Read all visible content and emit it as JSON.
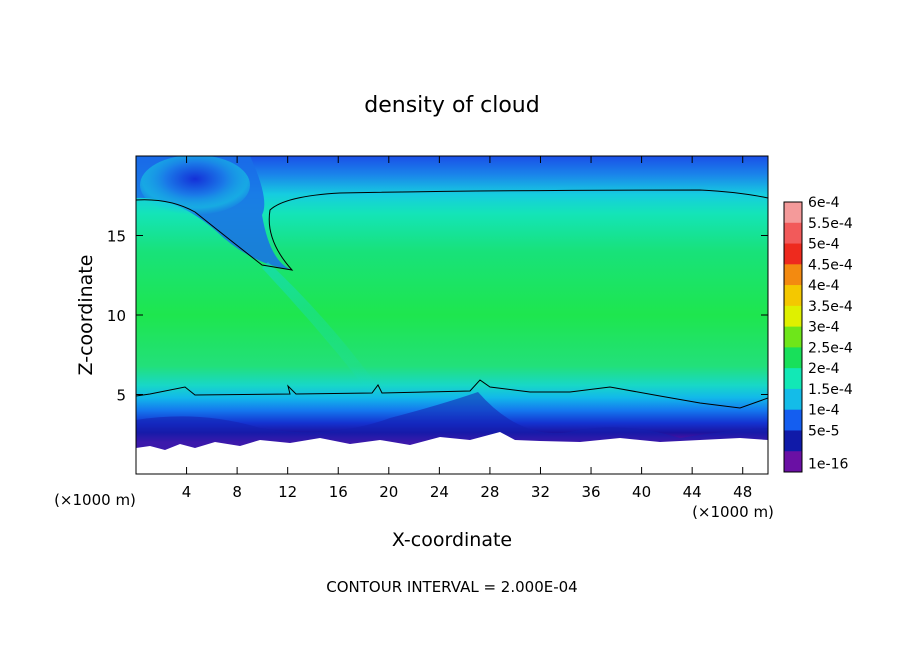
{
  "chart_data": {
    "type": "heatmap",
    "title": "density of cloud",
    "xlabel": "X-coordinate",
    "ylabel": "Z-coordinate",
    "x_unit_left": "(×1000 m)",
    "x_unit_right": "(×1000 m)",
    "xticks": [
      4,
      8,
      12,
      16,
      20,
      24,
      28,
      32,
      36,
      40,
      44,
      48
    ],
    "yticks": [
      5,
      10,
      15
    ],
    "xlim": [
      0,
      50
    ],
    "ylim": [
      0,
      20
    ],
    "footnote": "CONTOUR INTERVAL = 2.000E-04",
    "colorbar": {
      "labels": [
        "6e-4",
        "5.5e-4",
        "5e-4",
        "4.5e-4",
        "4e-4",
        "3.5e-4",
        "3e-4",
        "2.5e-4",
        "2e-4",
        "1.5e-4",
        "1e-4",
        "5e-5",
        "1e-16"
      ],
      "colors": [
        "#f49a9a",
        "#f25a5a",
        "#ee2a1e",
        "#f38a10",
        "#f4c800",
        "#dff000",
        "#6ee61a",
        "#18e05a",
        "#12e8b6",
        "#14bce8",
        "#145ef0",
        "#101aa8",
        "#6a10a4"
      ]
    }
  }
}
